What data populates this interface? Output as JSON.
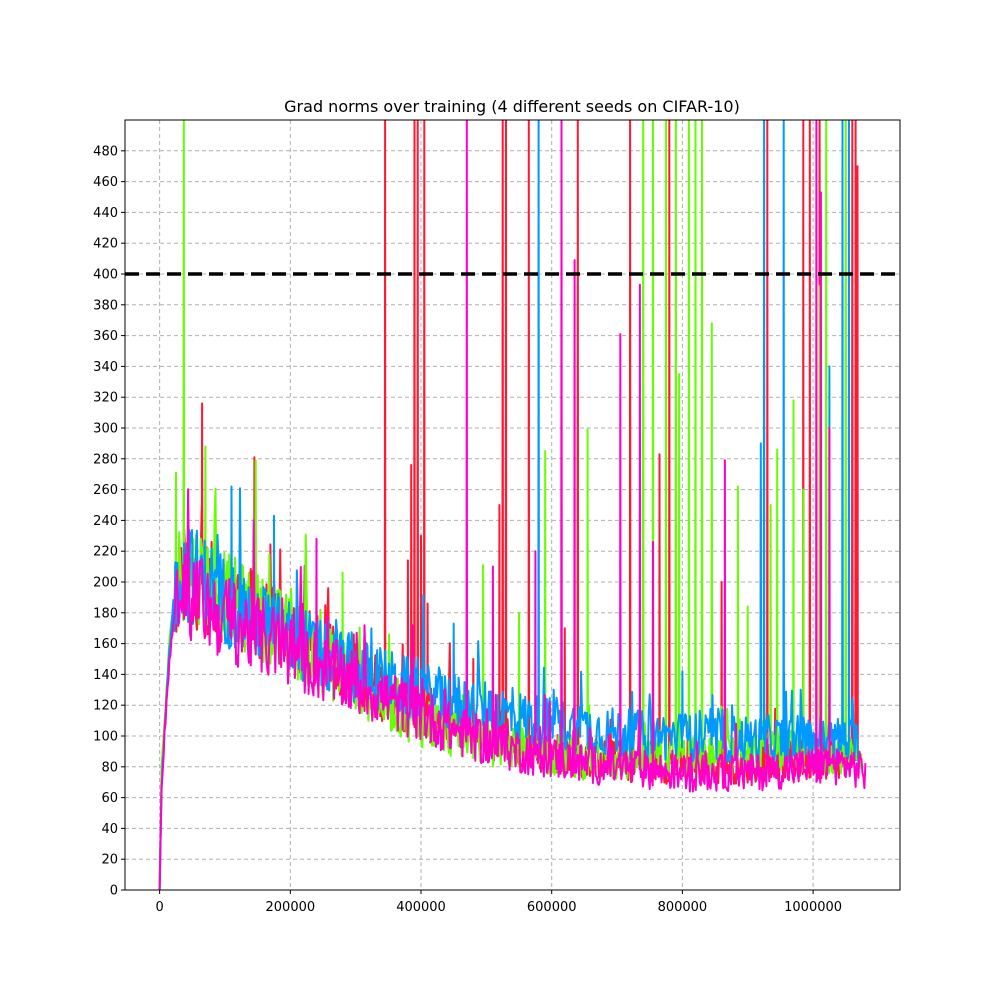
{
  "chart_data": {
    "type": "line",
    "title": "Grad norms over training (4 different seeds on CIFAR-10)",
    "xlabel": "",
    "ylabel": "",
    "xlim": [
      -53000,
      1133000
    ],
    "ylim": [
      0,
      500
    ],
    "x_ticks": [
      0,
      200000,
      400000,
      600000,
      800000,
      1000000
    ],
    "x_tick_labels": [
      "0",
      "200000",
      "400000",
      "600000",
      "800000",
      "1000000"
    ],
    "y_ticks": [
      0,
      20,
      40,
      60,
      80,
      100,
      120,
      140,
      160,
      180,
      200,
      220,
      240,
      260,
      280,
      300,
      320,
      340,
      360,
      380,
      400,
      420,
      440,
      460,
      480
    ],
    "y_tick_labels": [
      "0",
      "20",
      "40",
      "60",
      "80",
      "100",
      "120",
      "140",
      "160",
      "180",
      "200",
      "220",
      "240",
      "260",
      "280",
      "300",
      "320",
      "340",
      "360",
      "380",
      "400",
      "420",
      "440",
      "460",
      "480"
    ],
    "grid": true,
    "legend": "none",
    "reference_line": {
      "y": 400,
      "style": "dashed",
      "color": "#000000"
    },
    "series_colors": [
      "#ff1a33",
      "#66ff00",
      "#0099ff",
      "#ff00cc"
    ],
    "series": [
      {
        "x": [
          0,
          3000,
          6000,
          10000,
          15000,
          22000,
          30000,
          40000,
          60000,
          80000,
          100000,
          150000,
          200000,
          250000,
          300000,
          350000,
          400000,
          450000,
          500000,
          550000,
          600000,
          650000,
          700000,
          750000,
          800000,
          850000,
          900000,
          950000,
          1000000,
          1050000,
          1070000
        ],
        "values": [
          0,
          75,
          95,
          115,
          155,
          185,
          200,
          205,
          200,
          195,
          190,
          178,
          165,
          152,
          140,
          128,
          115,
          108,
          100,
          95,
          90,
          86,
          84,
          82,
          82,
          82,
          82,
          84,
          85,
          86,
          84
        ],
        "spikes": [
          [
            345000,
            510
          ],
          [
            380000,
            214
          ],
          [
            385000,
            276
          ],
          [
            390000,
            510
          ],
          [
            395000,
            510
          ],
          [
            400000,
            230
          ],
          [
            405000,
            510
          ],
          [
            410000,
            186
          ],
          [
            480000,
            150
          ],
          [
            520000,
            250
          ],
          [
            525000,
            510
          ],
          [
            530000,
            510
          ],
          [
            565000,
            510
          ],
          [
            620000,
            170
          ],
          [
            640000,
            510
          ],
          [
            720000,
            510
          ],
          [
            765000,
            283
          ],
          [
            780000,
            510
          ],
          [
            860000,
            200
          ],
          [
            920000,
            260
          ],
          [
            930000,
            510
          ],
          [
            985000,
            510
          ],
          [
            995000,
            510
          ],
          [
            1010000,
            510
          ],
          [
            1060000,
            510
          ],
          [
            1065000,
            510
          ],
          [
            1068000,
            470
          ],
          [
            65000,
            316
          ],
          [
            145000,
            281
          ]
        ]
      },
      {
        "x": [
          0,
          3000,
          6000,
          10000,
          15000,
          22000,
          30000,
          40000,
          60000,
          80000,
          100000,
          150000,
          200000,
          250000,
          300000,
          350000,
          400000,
          450000,
          500000,
          550000,
          600000,
          650000,
          700000,
          750000,
          800000,
          850000,
          900000,
          950000,
          1000000,
          1050000,
          1075000
        ],
        "values": [
          0,
          80,
          100,
          125,
          160,
          190,
          205,
          210,
          205,
          198,
          190,
          178,
          165,
          150,
          135,
          122,
          110,
          102,
          96,
          92,
          88,
          85,
          84,
          84,
          86,
          86,
          88,
          90,
          90,
          90,
          88
        ],
        "spikes": [
          [
            25000,
            271
          ],
          [
            37000,
            510
          ],
          [
            70000,
            288
          ],
          [
            147000,
            279
          ],
          [
            280000,
            206
          ],
          [
            495000,
            211
          ],
          [
            550000,
            180
          ],
          [
            590000,
            285
          ],
          [
            655000,
            299
          ],
          [
            740000,
            510
          ],
          [
            755000,
            510
          ],
          [
            775000,
            510
          ],
          [
            790000,
            510
          ],
          [
            795000,
            335
          ],
          [
            810000,
            510
          ],
          [
            820000,
            510
          ],
          [
            830000,
            510
          ],
          [
            845000,
            368
          ],
          [
            885000,
            262
          ],
          [
            900000,
            184
          ],
          [
            935000,
            250
          ],
          [
            945000,
            286
          ],
          [
            970000,
            318
          ],
          [
            985000,
            260
          ],
          [
            1010000,
            392
          ],
          [
            1020000,
            510
          ],
          [
            1045000,
            200
          ],
          [
            1050000,
            510
          ]
        ]
      },
      {
        "x": [
          0,
          3000,
          6000,
          10000,
          15000,
          22000,
          30000,
          40000,
          60000,
          80000,
          100000,
          150000,
          200000,
          250000,
          300000,
          350000,
          400000,
          450000,
          500000,
          550000,
          600000,
          650000,
          700000,
          750000,
          800000,
          850000,
          900000,
          950000,
          1000000,
          1050000,
          1070000
        ],
        "values": [
          0,
          70,
          92,
          120,
          158,
          188,
          202,
          207,
          202,
          196,
          188,
          176,
          163,
          152,
          142,
          135,
          128,
          122,
          118,
          112,
          108,
          105,
          102,
          100,
          100,
          98,
          98,
          98,
          98,
          97,
          95
        ],
        "spikes": [
          [
            45000,
            234
          ],
          [
            110000,
            262
          ],
          [
            175000,
            243
          ],
          [
            450000,
            173
          ],
          [
            580000,
            510
          ],
          [
            800000,
            142
          ],
          [
            920000,
            290
          ],
          [
            925000,
            510
          ],
          [
            955000,
            510
          ],
          [
            1025000,
            340
          ],
          [
            1045000,
            510
          ],
          [
            1055000,
            510
          ]
        ]
      },
      {
        "x": [
          0,
          3000,
          6000,
          10000,
          15000,
          22000,
          30000,
          40000,
          60000,
          80000,
          100000,
          150000,
          200000,
          250000,
          300000,
          350000,
          400000,
          450000,
          500000,
          550000,
          600000,
          650000,
          700000,
          750000,
          800000,
          850000,
          900000,
          950000,
          1000000,
          1050000,
          1080000
        ],
        "values": [
          0,
          65,
          90,
          118,
          150,
          178,
          190,
          192,
          188,
          182,
          176,
          166,
          155,
          144,
          134,
          124,
          114,
          104,
          96,
          90,
          86,
          82,
          80,
          78,
          76,
          76,
          76,
          78,
          80,
          82,
          76
        ],
        "spikes": [
          [
            240000,
            228
          ],
          [
            470000,
            510
          ],
          [
            510000,
            210
          ],
          [
            575000,
            220
          ],
          [
            615000,
            510
          ],
          [
            635000,
            409
          ],
          [
            705000,
            361
          ],
          [
            735000,
            393
          ],
          [
            755000,
            226
          ],
          [
            865000,
            279
          ],
          [
            1025000,
            300
          ],
          [
            1005000,
            510
          ],
          [
            1012000,
            453
          ]
        ]
      }
    ]
  }
}
